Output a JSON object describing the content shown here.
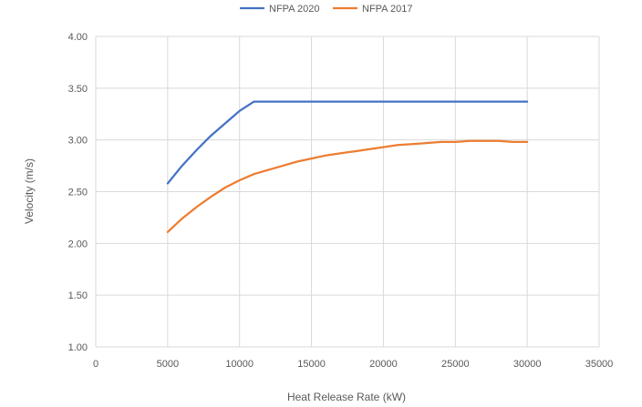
{
  "chart_data": {
    "type": "line",
    "title": "",
    "xlabel": "Heat Release Rate (kW)",
    "ylabel": "Velocity (m/s)",
    "xlim": [
      0,
      35000
    ],
    "ylim": [
      1.0,
      4.0
    ],
    "x_ticks": [
      "0",
      "5000",
      "10000",
      "15000",
      "20000",
      "25000",
      "30000",
      "35000"
    ],
    "y_ticks": [
      "1.00",
      "1.50",
      "2.00",
      "2.50",
      "3.00",
      "3.50",
      "4.00"
    ],
    "grid": true,
    "legend_position": "top",
    "series": [
      {
        "name": "NFPA 2020",
        "color": "#4472C4",
        "x": [
          5000,
          6000,
          7000,
          8000,
          9000,
          10000,
          11000,
          15000,
          20000,
          25000,
          30000
        ],
        "y": [
          2.58,
          2.75,
          2.9,
          3.04,
          3.16,
          3.28,
          3.37,
          3.37,
          3.37,
          3.37,
          3.37
        ]
      },
      {
        "name": "NFPA 2017",
        "color": "#ED7D31",
        "x": [
          5000,
          6000,
          7000,
          8000,
          9000,
          10000,
          11000,
          12000,
          13000,
          14000,
          15000,
          16000,
          17000,
          18000,
          19000,
          20000,
          21000,
          22000,
          23000,
          24000,
          25000,
          26000,
          27000,
          28000,
          29000,
          30000
        ],
        "y": [
          2.11,
          2.24,
          2.35,
          2.45,
          2.54,
          2.61,
          2.67,
          2.71,
          2.75,
          2.79,
          2.82,
          2.85,
          2.87,
          2.89,
          2.91,
          2.93,
          2.95,
          2.96,
          2.97,
          2.98,
          2.98,
          2.99,
          2.99,
          2.99,
          2.98,
          2.98
        ]
      }
    ]
  }
}
